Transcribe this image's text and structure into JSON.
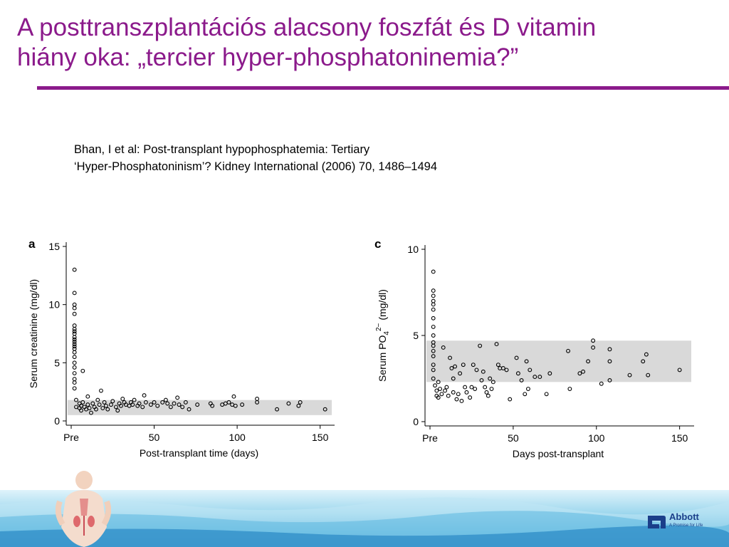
{
  "title": {
    "line1": "A posttranszplantációs alacsony foszfát és D vitamin",
    "line2": "hiány oka: „tercier hyper-phosphatoninemia?”"
  },
  "citation": {
    "line1": "Bhan, I et al: Post-transplant hypophosphatemia: Tertiary",
    "line2": "‘Hyper-Phosphatoninism’? Kidney International (2006) 70, 1486–1494"
  },
  "brand": {
    "name": "Abbott",
    "tagline": "A Promise for Life",
    "accent_color": "#8b1a8b",
    "logo_color": "#1b3f8a"
  },
  "chart_data": [
    {
      "type": "scatter",
      "panel_label": "a",
      "xlabel": "Post-transplant time (days)",
      "ylabel": "Serum creatinine (mg/dl)",
      "xlim": [
        -3,
        157
      ],
      "ylim": [
        0,
        15
      ],
      "x_ticks": [
        {
          "value": 0,
          "label": "Pre"
        },
        {
          "value": 50,
          "label": "50"
        },
        {
          "value": 100,
          "label": "100"
        },
        {
          "value": 150,
          "label": "150"
        }
      ],
      "y_ticks": [
        {
          "value": 0,
          "label": "0"
        },
        {
          "value": 5,
          "label": "5"
        },
        {
          "value": 10,
          "label": "10"
        },
        {
          "value": 15,
          "label": "15"
        }
      ],
      "reference_band": [
        0.5,
        1.8
      ],
      "points": [
        [
          2,
          13.0
        ],
        [
          2,
          11.0
        ],
        [
          2,
          10.0
        ],
        [
          2,
          9.7
        ],
        [
          2,
          9.2
        ],
        [
          2,
          8.2
        ],
        [
          2,
          7.9
        ],
        [
          2,
          7.7
        ],
        [
          2,
          7.5
        ],
        [
          2,
          7.2
        ],
        [
          2,
          7.0
        ],
        [
          2,
          6.8
        ],
        [
          2,
          6.6
        ],
        [
          2,
          6.4
        ],
        [
          2,
          6.2
        ],
        [
          2,
          5.9
        ],
        [
          2,
          5.5
        ],
        [
          2,
          5.0
        ],
        [
          2,
          4.6
        ],
        [
          2,
          4.1
        ],
        [
          2,
          3.6
        ],
        [
          2,
          3.3
        ],
        [
          2,
          2.8
        ],
        [
          3,
          1.8
        ],
        [
          3,
          1.2
        ],
        [
          5,
          1.5
        ],
        [
          5,
          1.1
        ],
        [
          6,
          1.3
        ],
        [
          6,
          0.9
        ],
        [
          7,
          4.3
        ],
        [
          7,
          1.6
        ],
        [
          8,
          1.2
        ],
        [
          9,
          1.0
        ],
        [
          10,
          2.1
        ],
        [
          10,
          1.4
        ],
        [
          11,
          1.1
        ],
        [
          12,
          0.7
        ],
        [
          13,
          1.5
        ],
        [
          14,
          1.2
        ],
        [
          15,
          1.0
        ],
        [
          16,
          1.8
        ],
        [
          17,
          1.4
        ],
        [
          18,
          2.6
        ],
        [
          19,
          1.1
        ],
        [
          20,
          1.6
        ],
        [
          21,
          1.3
        ],
        [
          22,
          1.0
        ],
        [
          24,
          1.4
        ],
        [
          25,
          1.7
        ],
        [
          27,
          1.2
        ],
        [
          28,
          0.9
        ],
        [
          29,
          1.5
        ],
        [
          30,
          1.3
        ],
        [
          31,
          1.9
        ],
        [
          32,
          1.6
        ],
        [
          33,
          1.4
        ],
        [
          35,
          1.3
        ],
        [
          36,
          1.6
        ],
        [
          37,
          1.4
        ],
        [
          38,
          1.8
        ],
        [
          40,
          1.3
        ],
        [
          41,
          1.5
        ],
        [
          43,
          1.2
        ],
        [
          44,
          2.2
        ],
        [
          45,
          1.6
        ],
        [
          48,
          1.4
        ],
        [
          50,
          1.6
        ],
        [
          52,
          1.3
        ],
        [
          55,
          1.6
        ],
        [
          57,
          1.8
        ],
        [
          58,
          1.5
        ],
        [
          60,
          1.2
        ],
        [
          62,
          1.5
        ],
        [
          64,
          2.0
        ],
        [
          65,
          1.4
        ],
        [
          67,
          1.2
        ],
        [
          69,
          1.6
        ],
        [
          71,
          1.0
        ],
        [
          76,
          1.4
        ],
        [
          84,
          1.5
        ],
        [
          85,
          1.3
        ],
        [
          91,
          1.4
        ],
        [
          93,
          1.5
        ],
        [
          95,
          1.6
        ],
        [
          97,
          1.4
        ],
        [
          98,
          2.1
        ],
        [
          99,
          1.3
        ],
        [
          103,
          1.4
        ],
        [
          112,
          1.6
        ],
        [
          112,
          1.9
        ],
        [
          124,
          1.0
        ],
        [
          131,
          1.5
        ],
        [
          137,
          1.3
        ],
        [
          138,
          1.6
        ],
        [
          153,
          1.0
        ]
      ]
    },
    {
      "type": "scatter",
      "panel_label": "c",
      "xlabel": "Days post-transplant",
      "ylabel_main": "Serum PO",
      "ylabel_sub": "4",
      "ylabel_sup": "2−",
      "ylabel_unit": "(mg/dl)",
      "xlim": [
        -3,
        157
      ],
      "ylim": [
        0,
        10
      ],
      "x_ticks": [
        {
          "value": 0,
          "label": "Pre"
        },
        {
          "value": 50,
          "label": "50"
        },
        {
          "value": 100,
          "label": "100"
        },
        {
          "value": 150,
          "label": "150"
        }
      ],
      "y_ticks": [
        {
          "value": 0,
          "label": "0"
        },
        {
          "value": 5,
          "label": "5"
        },
        {
          "value": 10,
          "label": "10"
        }
      ],
      "reference_band": [
        2.3,
        4.7
      ],
      "points": [
        [
          2,
          8.7
        ],
        [
          2,
          7.6
        ],
        [
          2,
          7.3
        ],
        [
          2,
          7.0
        ],
        [
          2,
          6.8
        ],
        [
          2,
          6.5
        ],
        [
          2,
          6.0
        ],
        [
          2,
          5.5
        ],
        [
          2,
          5.0
        ],
        [
          2,
          4.6
        ],
        [
          2,
          4.4
        ],
        [
          2,
          4.1
        ],
        [
          2,
          3.8
        ],
        [
          2,
          3.3
        ],
        [
          2,
          3.0
        ],
        [
          2,
          2.5
        ],
        [
          3,
          2.1
        ],
        [
          4,
          1.8
        ],
        [
          4,
          1.5
        ],
        [
          5,
          2.3
        ],
        [
          5,
          1.4
        ],
        [
          6,
          1.9
        ],
        [
          7,
          1.6
        ],
        [
          8,
          4.3
        ],
        [
          9,
          1.8
        ],
        [
          10,
          2.0
        ],
        [
          11,
          1.5
        ],
        [
          12,
          3.7
        ],
        [
          13,
          3.1
        ],
        [
          14,
          1.7
        ],
        [
          14,
          2.5
        ],
        [
          15,
          3.2
        ],
        [
          16,
          1.3
        ],
        [
          17,
          1.6
        ],
        [
          18,
          2.8
        ],
        [
          19,
          1.2
        ],
        [
          20,
          3.3
        ],
        [
          21,
          2.0
        ],
        [
          22,
          1.7
        ],
        [
          24,
          1.4
        ],
        [
          25,
          2.0
        ],
        [
          26,
          3.3
        ],
        [
          27,
          1.9
        ],
        [
          28,
          3.0
        ],
        [
          30,
          4.4
        ],
        [
          31,
          2.4
        ],
        [
          32,
          2.9
        ],
        [
          33,
          2.0
        ],
        [
          34,
          1.7
        ],
        [
          35,
          1.5
        ],
        [
          36,
          2.5
        ],
        [
          37,
          1.9
        ],
        [
          38,
          2.3
        ],
        [
          40,
          4.5
        ],
        [
          41,
          3.3
        ],
        [
          42,
          3.1
        ],
        [
          44,
          3.1
        ],
        [
          46,
          3.0
        ],
        [
          48,
          1.3
        ],
        [
          52,
          3.7
        ],
        [
          53,
          2.8
        ],
        [
          55,
          2.4
        ],
        [
          57,
          1.6
        ],
        [
          58,
          3.5
        ],
        [
          59,
          1.9
        ],
        [
          60,
          3.0
        ],
        [
          63,
          2.6
        ],
        [
          66,
          2.6
        ],
        [
          70,
          1.6
        ],
        [
          72,
          2.8
        ],
        [
          83,
          4.1
        ],
        [
          84,
          1.9
        ],
        [
          90,
          2.8
        ],
        [
          92,
          2.9
        ],
        [
          95,
          3.5
        ],
        [
          98,
          4.7
        ],
        [
          98,
          4.3
        ],
        [
          103,
          2.2
        ],
        [
          108,
          4.2
        ],
        [
          108,
          3.5
        ],
        [
          108,
          2.4
        ],
        [
          120,
          2.7
        ],
        [
          128,
          3.5
        ],
        [
          130,
          3.9
        ],
        [
          131,
          2.7
        ],
        [
          150,
          3.0
        ]
      ]
    }
  ]
}
